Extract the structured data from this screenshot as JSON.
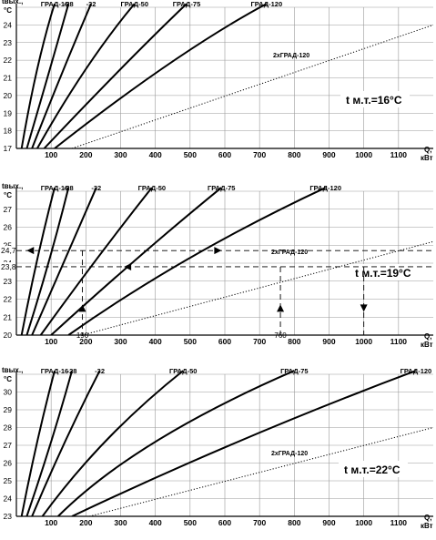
{
  "chart_data": [
    {
      "type": "line",
      "ylabel": "tвых., °С",
      "xlabel": "Q, кВт",
      "xlim": [
        0,
        1200
      ],
      "ylim": [
        17,
        25
      ],
      "xticks": [
        100,
        200,
        300,
        400,
        500,
        600,
        700,
        800,
        900,
        1000,
        1100
      ],
      "yticks": [
        17,
        18,
        19,
        20,
        21,
        22,
        23,
        24
      ],
      "annotation": "t м.т.=16°С",
      "grid": true,
      "series": [
        {
          "name": "ГРАД-16",
          "x": [
            15,
            60,
            110
          ],
          "y": [
            17,
            21.5,
            25.2
          ]
        },
        {
          "name": "-28",
          "x": [
            30,
            95,
            150
          ],
          "y": [
            17,
            21.4,
            25.2
          ]
        },
        {
          "name": "-32",
          "x": [
            45,
            130,
            215
          ],
          "y": [
            17,
            21.2,
            25.2
          ]
        },
        {
          "name": "ГРАД-50",
          "x": [
            60,
            200,
            340
          ],
          "y": [
            17,
            21.5,
            25.2
          ]
        },
        {
          "name": "ГРАД-75",
          "x": [
            80,
            300,
            490
          ],
          "y": [
            17,
            21.5,
            25.2
          ]
        },
        {
          "name": "ГРАД-120",
          "x": [
            110,
            440,
            720
          ],
          "y": [
            17,
            21.8,
            25.2
          ]
        },
        {
          "name": "2хГРАД-120",
          "style": "dotted",
          "x": [
            160,
            1200
          ],
          "y": [
            17,
            24
          ]
        }
      ]
    },
    {
      "type": "line",
      "ylabel": "tвых., °С",
      "xlabel": "Q, кВт",
      "xlim": [
        0,
        1200
      ],
      "ylim": [
        20,
        28
      ],
      "xticks": [
        100,
        200,
        300,
        400,
        500,
        600,
        700,
        800,
        900,
        1000,
        1100
      ],
      "yticks": [
        20,
        21,
        22,
        23,
        24,
        25,
        26,
        27
      ],
      "extra_ticks": [
        "24,7",
        "23,8"
      ],
      "x_marks": [
        "190",
        "760"
      ],
      "annotation": "t м.т.=19°С",
      "grid": true,
      "series": [
        {
          "name": "ГРАД-16",
          "x": [
            15,
            60,
            110
          ],
          "y": [
            20,
            24.2,
            28.2
          ]
        },
        {
          "name": "-28",
          "x": [
            30,
            95,
            150
          ],
          "y": [
            20,
            24.2,
            28.2
          ]
        },
        {
          "name": "-32",
          "x": [
            45,
            140,
            230
          ],
          "y": [
            20,
            24.2,
            28.2
          ]
        },
        {
          "name": "ГРАД-50",
          "x": [
            70,
            230,
            390
          ],
          "y": [
            20,
            24.2,
            28.2
          ]
        },
        {
          "name": "ГРАД-75",
          "x": [
            100,
            350,
            590
          ],
          "y": [
            20,
            24.3,
            28.2
          ]
        },
        {
          "name": "ГРАД-120",
          "x": [
            150,
            500,
            890
          ],
          "y": [
            20,
            24.3,
            28.2
          ]
        },
        {
          "name": "2хГРАД-120",
          "style": "dotted",
          "x": [
            190,
            1200
          ],
          "y": [
            20,
            25.2
          ]
        }
      ]
    },
    {
      "type": "line",
      "ylabel": "tвых., °С",
      "xlabel": "Q, кВт",
      "xlim": [
        0,
        1200
      ],
      "ylim": [
        23,
        31
      ],
      "xticks": [
        100,
        200,
        300,
        400,
        500,
        600,
        700,
        800,
        900,
        1000,
        1100
      ],
      "yticks": [
        23,
        24,
        25,
        26,
        27,
        28,
        29,
        30
      ],
      "annotation": "t м.т.=22°С",
      "grid": true,
      "series": [
        {
          "name": "ГРАД-16",
          "x": [
            15,
            60,
            110
          ],
          "y": [
            23,
            27.2,
            31.2
          ]
        },
        {
          "name": "-28",
          "x": [
            30,
            100,
            160
          ],
          "y": [
            23,
            27.2,
            31.2
          ]
        },
        {
          "name": "-32",
          "x": [
            45,
            140,
            240
          ],
          "y": [
            23,
            27.2,
            31.2
          ]
        },
        {
          "name": "ГРАД-50",
          "x": [
            75,
            260,
            480
          ],
          "y": [
            23,
            27.3,
            31.2
          ]
        },
        {
          "name": "ГРАД-75",
          "x": [
            120,
            400,
            800
          ],
          "y": [
            23,
            27.2,
            31.2
          ]
        },
        {
          "name": "ГРАД-120",
          "x": [
            160,
            650,
            1150
          ],
          "y": [
            23,
            27.3,
            31.2
          ]
        },
        {
          "name": "2хГРАД-120",
          "style": "dotted",
          "x": [
            210,
            1200
          ],
          "y": [
            23,
            28
          ]
        }
      ]
    }
  ]
}
